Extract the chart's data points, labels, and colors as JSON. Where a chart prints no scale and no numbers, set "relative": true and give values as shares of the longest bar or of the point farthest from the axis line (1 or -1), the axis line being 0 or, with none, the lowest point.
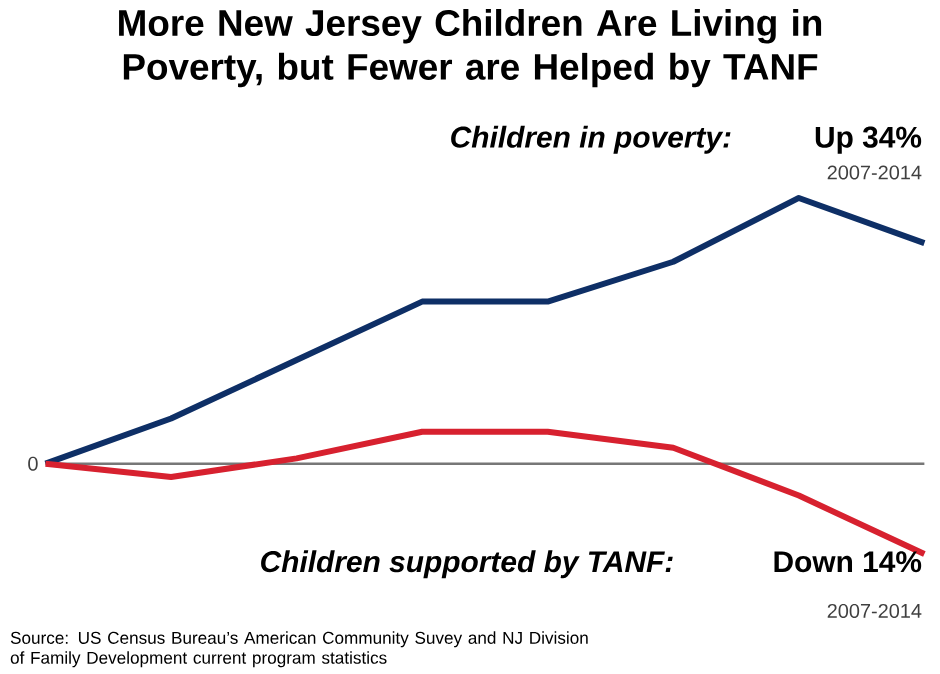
{
  "chart_data": {
    "type": "line",
    "title": "More New Jersey Children Are Living in Poverty, but Fewer are Helped by TANF",
    "categories": [
      null,
      null,
      null,
      null,
      null,
      null,
      null,
      null
    ],
    "relative": true,
    "series": [
      {
        "name": "Children in poverty:",
        "color": "#0e2f66",
        "values": [
          0,
          0.17,
          0.39,
          0.61,
          0.61,
          0.76,
          1,
          0.83
        ]
      },
      {
        "name": "Children supported by TANF:",
        "color": "#d7212f",
        "values": [
          0,
          -0.05,
          0.02,
          0.12,
          0.12,
          0.06,
          -0.12,
          -0.34
        ]
      }
    ],
    "ref_lines": [
      {
        "axis": "y",
        "value": 0,
        "label": "0",
        "color": "#777777"
      }
    ],
    "annotations": [
      "Up 34%",
      "2007-2014",
      "Down 14%",
      "2007-2014",
      "Source: US Census Bureau’s American Community Suvey and NJ Division of Family Development current program statistics"
    ]
  }
}
